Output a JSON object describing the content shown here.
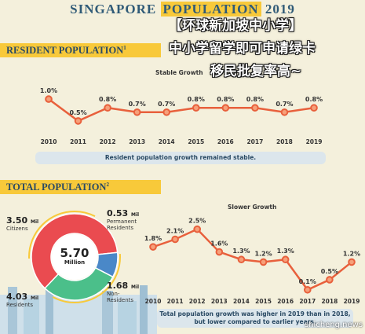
{
  "header": {
    "title_a": "SINGAPORE",
    "title_b": "POPULATION",
    "title_c": "2019"
  },
  "overlay": {
    "line1": "【环球新加坡中小学】",
    "line2": "中小学留学即可申请绿卡",
    "line3": "移民批复率高~"
  },
  "section1": {
    "title": "RESIDENT POPULATION",
    "ref": "1",
    "chart_title": "Stable Growth",
    "note": "Resident population growth remained stable."
  },
  "section2": {
    "title": "TOTAL POPULATION",
    "ref": "2",
    "chart_title": "Slower Growth",
    "note_line1": "Total population growth was higher in 2019 than in 2018,",
    "note_line2": "but lower compared to earlier years."
  },
  "donut": {
    "center_value": "5.70",
    "center_unit": "Million",
    "citizens": {
      "value": "3.50",
      "unit": "Mil",
      "label": "Citizens"
    },
    "pr": {
      "value": "0.53",
      "unit": "Mil",
      "label1": "Permanent",
      "label2": "Residents"
    },
    "nonres": {
      "value": "1.68",
      "unit": "Mil",
      "label1": "Non-",
      "label2": "Residents"
    },
    "residents": {
      "value": "4.03",
      "unit": "Mil",
      "label": "Residents"
    }
  },
  "watermark": "shicheng.news",
  "colors": {
    "line": "#e8603c",
    "citizens": "#ea4b50",
    "pr": "#4a88c8",
    "nonres": "#4bbf8a",
    "yellow": "#f8c93a",
    "navy": "#2a4a64"
  },
  "chart_data": [
    {
      "type": "line",
      "title": "Stable Growth",
      "categories": [
        "2010",
        "2011",
        "2012",
        "2013",
        "2014",
        "2015",
        "2016",
        "2017",
        "2018",
        "2019"
      ],
      "values": [
        1.0,
        0.5,
        0.8,
        0.7,
        0.7,
        0.8,
        0.8,
        0.8,
        0.7,
        0.8
      ],
      "labels": [
        "1.0%",
        "0.5%",
        "0.8%",
        "0.7%",
        "0.7%",
        "0.8%",
        "0.8%",
        "0.8%",
        "0.7%",
        "0.8%"
      ],
      "ylim": [
        0.3,
        1.2
      ]
    },
    {
      "type": "line",
      "title": "Slower Growth",
      "categories": [
        "2010",
        "2011",
        "2012",
        "2013",
        "2014",
        "2015",
        "2016",
        "2017",
        "2018",
        "2019"
      ],
      "values": [
        1.8,
        2.1,
        2.5,
        1.6,
        1.3,
        1.2,
        1.3,
        0.1,
        0.5,
        1.2
      ],
      "labels": [
        "1.8%",
        "2.1%",
        "2.5%",
        "1.6%",
        "1.3%",
        "1.2%",
        "1.3%",
        "0.1%",
        "0.5%",
        "1.2%"
      ],
      "ylim": [
        0,
        2.8
      ]
    },
    {
      "type": "pie",
      "categories": [
        "Citizens",
        "Permanent Residents",
        "Non-Residents"
      ],
      "values": [
        3.5,
        0.53,
        1.68
      ],
      "total": 5.7
    }
  ]
}
